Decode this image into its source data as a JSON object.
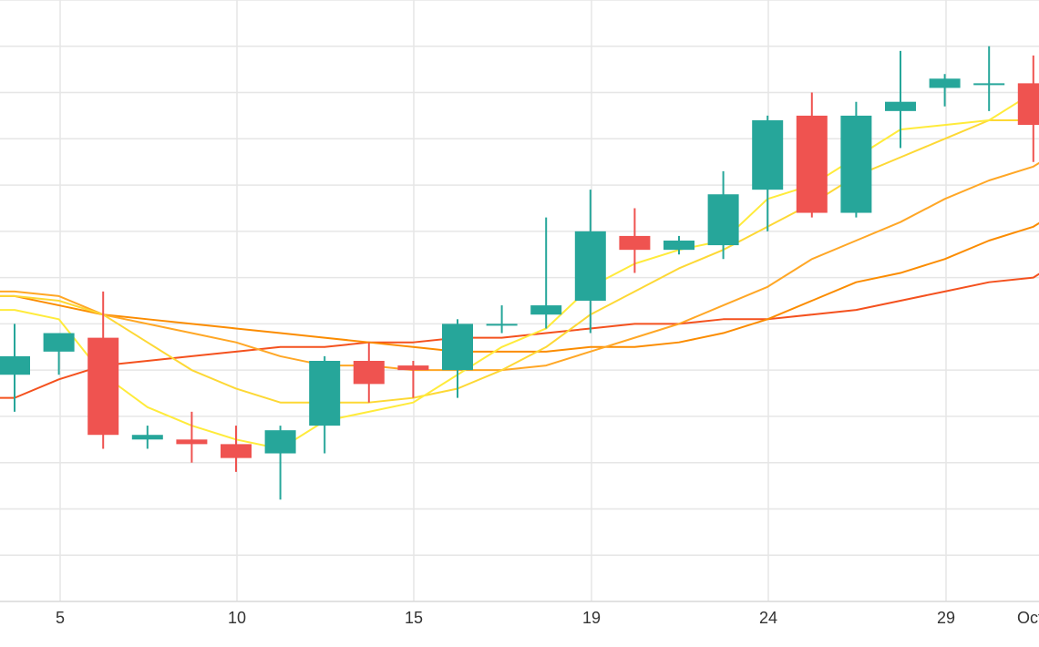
{
  "chart_data": {
    "type": "candlestick",
    "grid": true,
    "legend": "none",
    "x_tick_labels": [
      "5",
      "10",
      "15",
      "19",
      "24",
      "29",
      "Oct"
    ],
    "colors": {
      "up": "#26a69a",
      "down": "#ef5350",
      "grid": "#e6e6e6",
      "ma_fast": "#ffeb3b",
      "ma_2": "#fdd835",
      "ma_3": "#ffa726",
      "ma_4": "#fb8c00",
      "ma_5": "#f4511e"
    },
    "ylim": [
      0,
      13
    ],
    "candles": [
      {
        "open": 4.9,
        "close": 5.3,
        "high": 6.0,
        "low": 4.1
      },
      {
        "open": 5.4,
        "close": 5.8,
        "high": 5.8,
        "low": 4.9
      },
      {
        "open": 5.7,
        "close": 3.6,
        "high": 6.7,
        "low": 3.3
      },
      {
        "open": 3.5,
        "close": 3.6,
        "high": 3.8,
        "low": 3.3
      },
      {
        "open": 3.5,
        "close": 3.4,
        "high": 4.1,
        "low": 3.0
      },
      {
        "open": 3.4,
        "close": 3.1,
        "high": 3.8,
        "low": 2.8
      },
      {
        "open": 3.2,
        "close": 3.7,
        "high": 3.8,
        "low": 2.2
      },
      {
        "open": 3.8,
        "close": 5.2,
        "high": 5.3,
        "low": 3.2
      },
      {
        "open": 5.2,
        "close": 4.7,
        "high": 5.6,
        "low": 4.3
      },
      {
        "open": 5.1,
        "close": 5.0,
        "high": 5.2,
        "low": 4.4
      },
      {
        "open": 5.0,
        "close": 6.0,
        "high": 6.1,
        "low": 4.4
      },
      {
        "open": 6.0,
        "close": 6.0,
        "high": 6.4,
        "low": 5.8
      },
      {
        "open": 6.2,
        "close": 6.4,
        "high": 8.3,
        "low": 5.9
      },
      {
        "open": 6.5,
        "close": 8.0,
        "high": 8.9,
        "low": 5.8
      },
      {
        "open": 7.9,
        "close": 7.6,
        "high": 8.5,
        "low": 7.1
      },
      {
        "open": 7.6,
        "close": 7.8,
        "high": 7.9,
        "low": 7.5
      },
      {
        "open": 7.7,
        "close": 8.8,
        "high": 9.3,
        "low": 7.4
      },
      {
        "open": 8.9,
        "close": 10.4,
        "high": 10.5,
        "low": 8.0
      },
      {
        "open": 10.5,
        "close": 8.4,
        "high": 11.0,
        "low": 8.3
      },
      {
        "open": 8.4,
        "close": 10.5,
        "high": 10.8,
        "low": 8.3
      },
      {
        "open": 10.6,
        "close": 10.8,
        "high": 11.9,
        "low": 9.8
      },
      {
        "open": 11.1,
        "close": 11.3,
        "high": 11.4,
        "low": 10.7
      },
      {
        "open": 11.2,
        "close": 11.2,
        "high": 12.0,
        "low": 10.6
      },
      {
        "open": 11.2,
        "close": 10.3,
        "high": 11.8,
        "low": 9.5
      }
    ],
    "moving_averages": [
      {
        "key": "ma_fast",
        "values": [
          6.3,
          6.1,
          4.9,
          4.2,
          3.8,
          3.5,
          3.3,
          3.9,
          4.1,
          4.3,
          4.9,
          5.5,
          5.9,
          6.8,
          7.3,
          7.6,
          7.8,
          8.7,
          9.0,
          9.6,
          10.2,
          10.3,
          10.4,
          11.0
        ]
      },
      {
        "key": "ma_2",
        "values": [
          6.6,
          6.5,
          6.2,
          5.6,
          5.0,
          4.6,
          4.3,
          4.3,
          4.3,
          4.4,
          4.6,
          5.0,
          5.5,
          6.2,
          6.7,
          7.2,
          7.6,
          8.1,
          8.6,
          9.2,
          9.6,
          10.0,
          10.4,
          10.4
        ]
      },
      {
        "key": "ma_3",
        "values": [
          6.7,
          6.6,
          6.2,
          6.0,
          5.8,
          5.6,
          5.3,
          5.1,
          5.1,
          5.0,
          5.0,
          5.0,
          5.1,
          5.4,
          5.7,
          6.0,
          6.4,
          6.8,
          7.4,
          7.8,
          8.2,
          8.7,
          9.1,
          9.4
        ]
      },
      {
        "key": "ma_4",
        "values": [
          6.6,
          6.4,
          6.2,
          6.1,
          6.0,
          5.9,
          5.8,
          5.7,
          5.6,
          5.5,
          5.4,
          5.4,
          5.4,
          5.5,
          5.5,
          5.6,
          5.8,
          6.1,
          6.5,
          6.9,
          7.1,
          7.4,
          7.8,
          8.1
        ]
      },
      {
        "key": "ma_5",
        "values": [
          4.4,
          4.8,
          5.1,
          5.2,
          5.3,
          5.4,
          5.5,
          5.5,
          5.6,
          5.6,
          5.7,
          5.7,
          5.8,
          5.9,
          6.0,
          6.0,
          6.1,
          6.1,
          6.2,
          6.3,
          6.5,
          6.7,
          6.9,
          7.0
        ]
      }
    ]
  }
}
